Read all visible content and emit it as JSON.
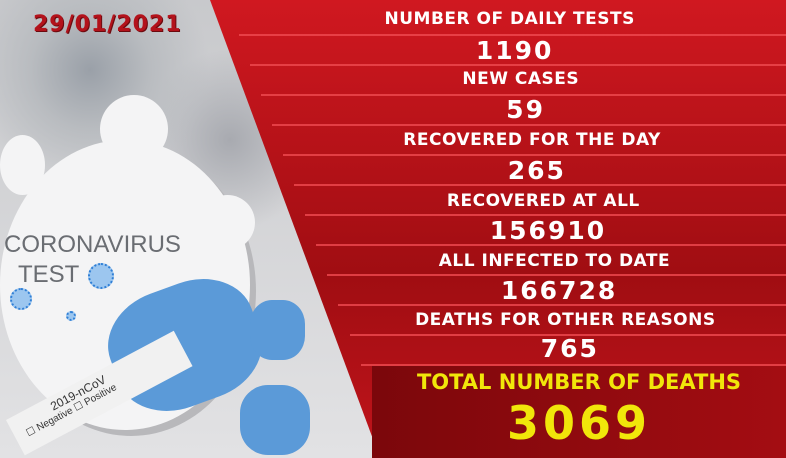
{
  "date": "29/01/2021",
  "photo": {
    "sign_line1": "CORONAVIRUS",
    "sign_line2": "TEST",
    "tube_label": "2019-nCoV",
    "checkbox_negative": "Negative",
    "checkbox_positive": "Positive"
  },
  "stats": [
    {
      "label": "NUMBER OF DAILY TESTS",
      "value": "1190"
    },
    {
      "label": "NEW CASES",
      "value": "59"
    },
    {
      "label": "RECOVERED FOR THE DAY",
      "value": "265"
    },
    {
      "label": "RECOVERED AT ALL",
      "value": "156910"
    },
    {
      "label": "ALL INFECTED TO DATE",
      "value": "166728"
    },
    {
      "label": "DEATHS FOR OTHER REASONS",
      "value": "765"
    }
  ],
  "total": {
    "label": "TOTAL NUMBER OF DEATHS",
    "value": "3069"
  },
  "colors": {
    "panel": "#c0141b",
    "total_text": "#f1e60a",
    "date": "#b3121b"
  }
}
